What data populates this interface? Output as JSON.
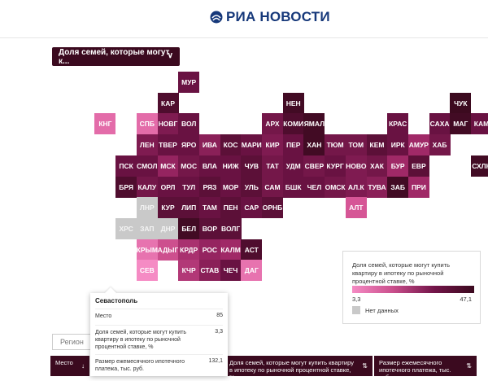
{
  "header": {
    "logo_text": "РИА НОВОСТИ"
  },
  "dropdown": {
    "label": "Доля семей, которые могут к..."
  },
  "colors": {
    "none": "#c9c9c9",
    "accent": "#3b0a1f"
  },
  "tiles": [
    {
      "code": "МУР",
      "col": 6,
      "row": 0,
      "value": 40
    },
    {
      "code": "КАР",
      "col": 5,
      "row": 1,
      "value": 44
    },
    {
      "code": "НЕН",
      "col": 11,
      "row": 1,
      "value": 46
    },
    {
      "code": "ЧУК",
      "col": 19,
      "row": 1,
      "value": 47
    },
    {
      "code": "КНГ",
      "col": 2,
      "row": 2,
      "value": 12
    },
    {
      "code": "СПБ",
      "col": 4,
      "row": 2,
      "value": 12
    },
    {
      "code": "НОВГ",
      "col": 5,
      "row": 2,
      "value": 36
    },
    {
      "code": "ВОЛ",
      "col": 6,
      "row": 2,
      "value": 40
    },
    {
      "code": "АРХ",
      "col": 10,
      "row": 2,
      "value": 38
    },
    {
      "code": "КОМИ",
      "col": 11,
      "row": 2,
      "value": 44
    },
    {
      "code": "ЯМАЛ",
      "col": 12,
      "row": 2,
      "value": 46
    },
    {
      "code": "КРАС",
      "col": 16,
      "row": 2,
      "value": 40
    },
    {
      "code": "САХА",
      "col": 18,
      "row": 2,
      "value": 40
    },
    {
      "code": "МАГ",
      "col": 19,
      "row": 2,
      "value": 46
    },
    {
      "code": "КАМ",
      "col": 20,
      "row": 2,
      "value": 40
    },
    {
      "code": "ЛЕН",
      "col": 4,
      "row": 3,
      "value": 36
    },
    {
      "code": "ТВЕР",
      "col": 5,
      "row": 3,
      "value": 40
    },
    {
      "code": "ЯРО",
      "col": 6,
      "row": 3,
      "value": 40
    },
    {
      "code": "ИВА",
      "col": 7,
      "row": 3,
      "value": 34
    },
    {
      "code": "КОС",
      "col": 8,
      "row": 3,
      "value": 42
    },
    {
      "code": "МАРИ",
      "col": 9,
      "row": 3,
      "value": 40
    },
    {
      "code": "КИР",
      "col": 10,
      "row": 3,
      "value": 36
    },
    {
      "code": "ПЕР",
      "col": 11,
      "row": 3,
      "value": 40
    },
    {
      "code": "ХАН",
      "col": 12,
      "row": 3,
      "value": 46
    },
    {
      "code": "ТЮМ",
      "col": 13,
      "row": 3,
      "value": 38
    },
    {
      "code": "ТОМ",
      "col": 14,
      "row": 3,
      "value": 38
    },
    {
      "code": "КЕМ",
      "col": 15,
      "row": 3,
      "value": 42
    },
    {
      "code": "ИРК",
      "col": 16,
      "row": 3,
      "value": 40
    },
    {
      "code": "АМУР",
      "col": 17,
      "row": 3,
      "value": 30
    },
    {
      "code": "ХАБ",
      "col": 18,
      "row": 3,
      "value": 38
    },
    {
      "code": "ПСК",
      "col": 3,
      "row": 4,
      "value": 40
    },
    {
      "code": "СМОЛ",
      "col": 4,
      "row": 4,
      "value": 40
    },
    {
      "code": "МСК",
      "col": 5,
      "row": 4,
      "value": 32
    },
    {
      "code": "МОС",
      "col": 6,
      "row": 4,
      "value": 38
    },
    {
      "code": "ВЛА",
      "col": 7,
      "row": 4,
      "value": 40
    },
    {
      "code": "НИЖ",
      "col": 8,
      "row": 4,
      "value": 40
    },
    {
      "code": "ЧУВ",
      "col": 9,
      "row": 4,
      "value": 42
    },
    {
      "code": "ТАТ",
      "col": 10,
      "row": 4,
      "value": 38
    },
    {
      "code": "УДМ",
      "col": 11,
      "row": 4,
      "value": 40
    },
    {
      "code": "СВЕР",
      "col": 12,
      "row": 4,
      "value": 38
    },
    {
      "code": "КУРГ",
      "col": 13,
      "row": 4,
      "value": 40
    },
    {
      "code": "НОВО",
      "col": 14,
      "row": 4,
      "value": 36
    },
    {
      "code": "ХАК",
      "col": 15,
      "row": 4,
      "value": 38
    },
    {
      "code": "БУР",
      "col": 16,
      "row": 4,
      "value": 30
    },
    {
      "code": "ЕВР",
      "col": 17,
      "row": 4,
      "value": 42
    },
    {
      "code": "СХЛН",
      "col": 20,
      "row": 4,
      "value": 46
    },
    {
      "code": "БРЯ",
      "col": 3,
      "row": 5,
      "value": 44
    },
    {
      "code": "КАЛУ",
      "col": 4,
      "row": 5,
      "value": 38
    },
    {
      "code": "ОРЛ",
      "col": 5,
      "row": 5,
      "value": 40
    },
    {
      "code": "ТУЛ",
      "col": 6,
      "row": 5,
      "value": 40
    },
    {
      "code": "РЯЗ",
      "col": 7,
      "row": 5,
      "value": 42
    },
    {
      "code": "МОР",
      "col": 8,
      "row": 5,
      "value": 40
    },
    {
      "code": "УЛЬ",
      "col": 9,
      "row": 5,
      "value": 42
    },
    {
      "code": "САМ",
      "col": 10,
      "row": 5,
      "value": 38
    },
    {
      "code": "БШК",
      "col": 11,
      "row": 5,
      "value": 40
    },
    {
      "code": "ЧЕЛ",
      "col": 12,
      "row": 5,
      "value": 40
    },
    {
      "code": "ОМСК",
      "col": 13,
      "row": 5,
      "value": 38
    },
    {
      "code": "АЛ.К",
      "col": 14,
      "row": 5,
      "value": 36
    },
    {
      "code": "ТУВА",
      "col": 15,
      "row": 5,
      "value": 34
    },
    {
      "code": "ЗАБ",
      "col": 16,
      "row": 5,
      "value": 46
    },
    {
      "code": "ПРИ",
      "col": 17,
      "row": 5,
      "value": 30
    },
    {
      "code": "ЛНР",
      "col": 4,
      "row": 6,
      "value": null
    },
    {
      "code": "КУР",
      "col": 5,
      "row": 6,
      "value": 42
    },
    {
      "code": "ЛИП",
      "col": 6,
      "row": 6,
      "value": 42
    },
    {
      "code": "ТАМ",
      "col": 7,
      "row": 6,
      "value": 40
    },
    {
      "code": "ПЕН",
      "col": 8,
      "row": 6,
      "value": 42
    },
    {
      "code": "САР",
      "col": 9,
      "row": 6,
      "value": 40
    },
    {
      "code": "ОРНБ",
      "col": 10,
      "row": 6,
      "value": 42
    },
    {
      "code": "АЛТ",
      "col": 14,
      "row": 6,
      "value": 18
    },
    {
      "code": "ХРС",
      "col": 3,
      "row": 7,
      "value": null
    },
    {
      "code": "ЗАП",
      "col": 4,
      "row": 7,
      "value": null
    },
    {
      "code": "ДНР",
      "col": 5,
      "row": 7,
      "value": null
    },
    {
      "code": "БЕЛ",
      "col": 6,
      "row": 7,
      "value": 46
    },
    {
      "code": "ВОР",
      "col": 7,
      "row": 7,
      "value": 42
    },
    {
      "code": "ВОЛГ",
      "col": 8,
      "row": 7,
      "value": 42
    },
    {
      "code": "КРЫМ",
      "col": 4,
      "row": 8,
      "value": 10
    },
    {
      "code": "АДЫГ",
      "col": 5,
      "row": 8,
      "value": 20
    },
    {
      "code": "КРДР",
      "col": 6,
      "row": 8,
      "value": 28
    },
    {
      "code": "РОС",
      "col": 7,
      "row": 8,
      "value": 32
    },
    {
      "code": "КАЛМ",
      "col": 8,
      "row": 8,
      "value": 30
    },
    {
      "code": "АСТ",
      "col": 9,
      "row": 8,
      "value": 44
    },
    {
      "code": "СЕВ",
      "col": 4,
      "row": 9,
      "value": 3.3
    },
    {
      "code": "КЧР",
      "col": 6,
      "row": 9,
      "value": 26
    },
    {
      "code": "СТАВ",
      "col": 7,
      "row": 9,
      "value": 34
    },
    {
      "code": "ЧЕЧ",
      "col": 8,
      "row": 9,
      "value": 40
    },
    {
      "code": "ДАГ",
      "col": 9,
      "row": 9,
      "value": 10
    }
  ],
  "legend": {
    "title": "Доля семей, которые могут купить квартиру в ипотеку по рыночной процентной ставке, %",
    "min": "3,3",
    "max": "47,1",
    "no_data": "Нет данных"
  },
  "tooltip": {
    "title": "Севастополь",
    "rows": [
      {
        "label": "Место",
        "value": "85"
      },
      {
        "label": "Доля семей, которые могут купить квартиру в ипотеку по рыночной процентной ставке, %",
        "value": "3,3"
      },
      {
        "label": "Размер ежемесячного ипотечного платежа, тыс. руб.",
        "value": "132,1"
      }
    ]
  },
  "table": {
    "search_placeholder": "Регион",
    "columns": [
      {
        "label": "Место",
        "sort": "↓"
      },
      {
        "label": "Доля семей, которые могут купить квартиру в ипотеку по рыночной процентной ставке, %",
        "sort": "⇅"
      },
      {
        "label": "Размер ежемесячного ипотечного платежа, тыс. руб.",
        "sort": "⇅"
      }
    ]
  }
}
